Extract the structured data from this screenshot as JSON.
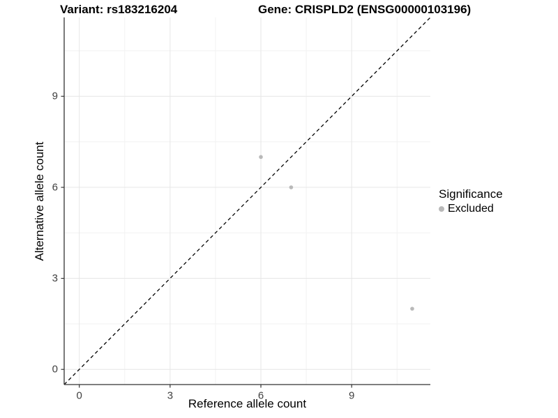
{
  "chart_data": {
    "type": "scatter",
    "title_variant": "Variant: rs183216204",
    "title_gene": "Gene: CRISPLD2 (ENSG00000103196)",
    "xlabel": "Reference allele count",
    "ylabel": "Alternative allele count",
    "xlim": [
      -0.5,
      11.6
    ],
    "ylim": [
      -0.5,
      11.6
    ],
    "x_ticks": [
      0,
      3,
      6,
      9
    ],
    "y_ticks": [
      0,
      3,
      6,
      9
    ],
    "minor_ticks": [
      1.5,
      4.5,
      7.5,
      10.5
    ],
    "grid": "on",
    "identity_line": {
      "style": "dashed",
      "color": "#000000",
      "span": [
        -0.5,
        11.6
      ]
    },
    "series": [
      {
        "name": "Excluded",
        "color": "#b9b9b9",
        "marker": "circle",
        "points": [
          [
            6,
            7
          ],
          [
            7,
            6
          ],
          [
            11,
            2
          ]
        ]
      }
    ],
    "legend": {
      "title": "Significance",
      "position": "right",
      "items": [
        {
          "label": "Excluded",
          "color": "#b9b9b9"
        }
      ]
    },
    "colors": {
      "grid_major": "#e6e6e6",
      "grid_minor": "#f2f2f2",
      "axis_line": "#333333",
      "tick_label": "#404040"
    }
  }
}
